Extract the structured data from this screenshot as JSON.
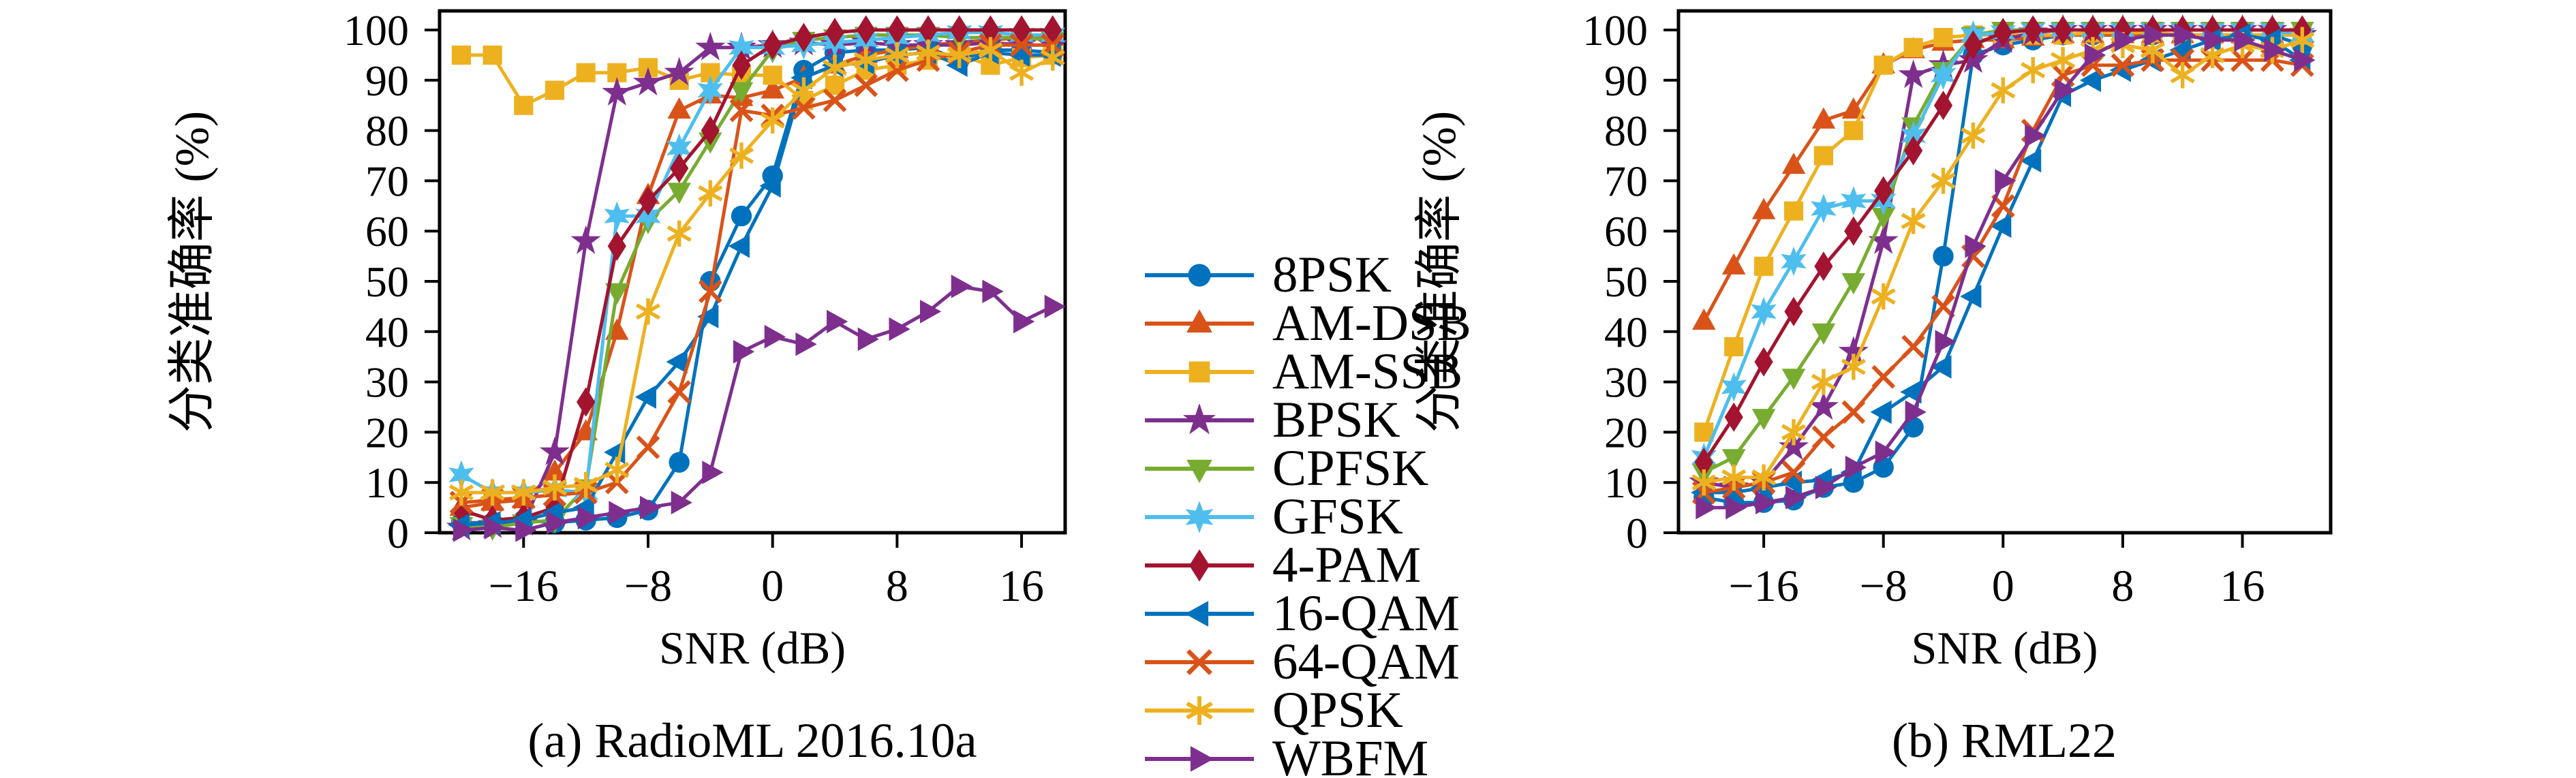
{
  "figure": {
    "background": "#FFFFFF",
    "type": "dual-line-chart-figure"
  },
  "axis": {
    "ylabel": "分类准确率 (%)",
    "xlabel": "SNR (dB)",
    "yticks": [
      "0",
      "10",
      "20",
      "30",
      "40",
      "50",
      "60",
      "70",
      "80",
      "90",
      "100"
    ],
    "xtick_values": [
      -16,
      -8,
      0,
      8,
      16
    ],
    "xtick_labels": [
      "−16",
      "−8",
      "0",
      "8",
      "16"
    ]
  },
  "colors": {
    "blue": "#0072BD",
    "orange": "#D95319",
    "yellow": "#EDB120",
    "purple": "#7E2F8E",
    "green": "#77AC30",
    "cyan": "#4DBEEE",
    "maroon": "#A2142F",
    "axis_black": "#000000"
  },
  "legend": {
    "items": [
      {
        "label": "8PSK",
        "color": "#0072BD",
        "marker": "circle"
      },
      {
        "label": "AM-DSB",
        "color": "#D95319",
        "marker": "triangle-up"
      },
      {
        "label": "AM-SSB",
        "color": "#EDB120",
        "marker": "square"
      },
      {
        "label": "BPSK",
        "color": "#7E2F8E",
        "marker": "star5"
      },
      {
        "label": "CPFSK",
        "color": "#77AC30",
        "marker": "triangle-down"
      },
      {
        "label": "GFSK",
        "color": "#4DBEEE",
        "marker": "hexagram"
      },
      {
        "label": "4-PAM",
        "color": "#A2142F",
        "marker": "diamond"
      },
      {
        "label": "16-QAM",
        "color": "#0072BD",
        "marker": "triangle-left"
      },
      {
        "label": "64-QAM",
        "color": "#D95319",
        "marker": "x"
      },
      {
        "label": "QPSK",
        "color": "#EDB120",
        "marker": "asterisk"
      },
      {
        "label": "WBFM",
        "color": "#7E2F8E",
        "marker": "triangle-right"
      }
    ]
  },
  "chart_data": [
    {
      "type": "line",
      "title": "(a) RadioML 2016.10a",
      "xlabel": "SNR (dB)",
      "ylabel": "分类准确率 (%)",
      "xlim": [
        -21.4,
        18.8
      ],
      "ylim": [
        0,
        104
      ],
      "grid": false,
      "x": [
        -20,
        -18,
        -16,
        -14,
        -12,
        -10,
        -8,
        -6,
        -4,
        -2,
        0,
        2,
        4,
        6,
        8,
        10,
        12,
        14,
        16,
        18
      ],
      "series": [
        {
          "name": "8PSK",
          "color": "#0072BD",
          "marker": "circle",
          "values": [
            2,
            2,
            2.5,
            2,
            2.5,
            3,
            4.5,
            14,
            50,
            63,
            71,
            92,
            95.5,
            96,
            96,
            96.5,
            94,
            96,
            96,
            95.5
          ]
        },
        {
          "name": "AM-DSB",
          "color": "#D95319",
          "marker": "triangle-up",
          "values": [
            5,
            6,
            6.5,
            12,
            20,
            40,
            67,
            84,
            87,
            86.5,
            88,
            90.5,
            93,
            95,
            96,
            97,
            97.5,
            98,
            98.5,
            98.5
          ]
        },
        {
          "name": "AM-SSB",
          "color": "#EDB120",
          "marker": "square",
          "values": [
            95,
            95,
            85,
            88,
            91.5,
            91.5,
            92.5,
            90,
            91.5,
            91,
            91,
            86,
            89,
            92,
            93,
            94,
            95,
            93,
            94.5,
            95
          ]
        },
        {
          "name": "BPSK",
          "color": "#7E2F8E",
          "marker": "star5",
          "values": [
            1,
            1.5,
            2,
            16,
            58,
            87.5,
            89.5,
            91.5,
            96.5,
            96.5,
            97,
            97.5,
            97,
            97.5,
            97,
            97,
            97,
            97.5,
            97,
            97
          ]
        },
        {
          "name": "CPFSK",
          "color": "#77AC30",
          "marker": "triangle-down",
          "values": [
            1.5,
            1,
            2,
            2.5,
            9,
            48,
            62,
            68,
            78,
            88,
            96,
            98,
            98.5,
            99,
            99,
            99,
            98.5,
            98.5,
            98.5,
            98
          ]
        },
        {
          "name": "GFSK",
          "color": "#4DBEEE",
          "marker": "hexagram",
          "values": [
            11.5,
            8,
            8,
            8.5,
            8,
            63,
            63,
            76.5,
            88,
            96.5,
            96.5,
            97,
            97.5,
            98,
            98.5,
            99,
            99.5,
            99.5,
            99,
            99
          ]
        },
        {
          "name": "4-PAM",
          "color": "#A2142F",
          "marker": "diamond",
          "values": [
            4.5,
            2.5,
            3,
            5,
            26,
            57,
            66,
            72.5,
            80,
            93,
            97,
            98.5,
            99.5,
            100,
            100,
            100,
            100,
            100,
            100,
            100
          ]
        },
        {
          "name": "16-QAM",
          "color": "#0072BD",
          "marker": "triangle-left",
          "values": [
            1.5,
            2,
            2.5,
            4,
            5,
            16,
            27,
            34,
            43,
            57,
            69,
            90.5,
            93,
            93.5,
            95,
            95.5,
            93,
            95.5,
            95,
            95
          ]
        },
        {
          "name": "64-QAM",
          "color": "#D95319",
          "marker": "x",
          "values": [
            6,
            6.5,
            7,
            7.5,
            8,
            10,
            17,
            28,
            48,
            84,
            83,
            84.5,
            86,
            89,
            92,
            94,
            95.5,
            97,
            97,
            97
          ]
        },
        {
          "name": "QPSK",
          "color": "#EDB120",
          "marker": "asterisk",
          "values": [
            8,
            8,
            8,
            9,
            9.5,
            12.5,
            44,
            59.5,
            67.5,
            75,
            82,
            88,
            92.5,
            94,
            95,
            95.5,
            95,
            96,
            91.5,
            94.5
          ]
        },
        {
          "name": "WBFM",
          "color": "#7E2F8E",
          "marker": "triangle-right",
          "values": [
            0.5,
            1,
            0.5,
            2,
            3,
            4,
            5,
            6,
            12,
            36,
            39,
            37.5,
            42,
            38.5,
            40.5,
            44,
            49,
            48,
            42,
            45
          ]
        }
      ]
    },
    {
      "type": "line",
      "title": "(b) RML22",
      "xlabel": "SNR (dB)",
      "ylabel": "分类准确率 (%)",
      "xlim": [
        -21.7,
        21.9
      ],
      "ylim": [
        0,
        104
      ],
      "grid": false,
      "x": [
        -20,
        -18,
        -16,
        -14,
        -12,
        -10,
        -8,
        -6,
        -4,
        -2,
        0,
        2,
        4,
        6,
        8,
        10,
        12,
        14,
        16,
        18,
        20
      ],
      "series": [
        {
          "name": "8PSK",
          "color": "#0072BD",
          "marker": "circle",
          "values": [
            7,
            6,
            6,
            6.5,
            9,
            10,
            13,
            21,
            55,
            95,
            97,
            98,
            99,
            99,
            99,
            99,
            99,
            99,
            99,
            99,
            97
          ]
        },
        {
          "name": "AM-DSB",
          "color": "#D95319",
          "marker": "triangle-up",
          "values": [
            42,
            53,
            64,
            73,
            82,
            84,
            93,
            96,
            97.5,
            98,
            98,
            98.5,
            99,
            99,
            99,
            99,
            99,
            99,
            99,
            99,
            99
          ]
        },
        {
          "name": "AM-SSB",
          "color": "#EDB120",
          "marker": "square",
          "values": [
            20,
            37,
            53,
            64,
            75,
            80,
            93,
            96.5,
            98.5,
            99,
            99,
            99,
            99,
            99.5,
            99.5,
            99.5,
            99,
            99,
            99,
            99,
            99
          ]
        },
        {
          "name": "BPSK",
          "color": "#7E2F8E",
          "marker": "star5",
          "values": [
            10,
            9,
            10,
            17,
            25,
            36,
            58,
            91,
            93,
            94,
            98,
            99.5,
            100,
            100,
            100,
            100,
            100,
            100,
            100,
            100,
            99
          ]
        },
        {
          "name": "CPFSK",
          "color": "#77AC30",
          "marker": "triangle-down",
          "values": [
            12,
            15,
            23,
            31,
            40,
            50,
            63,
            81,
            92,
            99,
            100,
            100,
            100,
            100,
            100,
            100,
            100,
            100,
            100,
            100,
            100
          ]
        },
        {
          "name": "GFSK",
          "color": "#4DBEEE",
          "marker": "hexagram",
          "values": [
            15,
            29,
            44,
            54,
            64.5,
            66,
            66,
            79,
            91,
            99,
            99.5,
            100,
            100,
            100,
            100,
            100,
            100,
            100,
            100,
            100,
            99
          ]
        },
        {
          "name": "4-PAM",
          "color": "#A2142F",
          "marker": "diamond",
          "values": [
            14,
            23,
            34,
            44,
            53,
            60,
            68,
            76,
            85,
            97,
            99.5,
            100,
            100,
            100,
            100,
            100,
            100,
            100,
            100,
            100,
            100
          ]
        },
        {
          "name": "16-QAM",
          "color": "#0072BD",
          "marker": "triangle-left",
          "values": [
            8,
            8,
            9,
            10,
            10.5,
            12,
            24,
            28,
            33,
            47,
            61,
            74,
            87,
            90,
            92,
            94,
            96,
            98,
            99,
            98,
            94
          ]
        },
        {
          "name": "64-QAM",
          "color": "#D95319",
          "marker": "x",
          "values": [
            8,
            9,
            10,
            12,
            19,
            24,
            31,
            37,
            45,
            55,
            65,
            80,
            91,
            93,
            93,
            94,
            94,
            94,
            94,
            94,
            93
          ]
        },
        {
          "name": "QPSK",
          "color": "#EDB120",
          "marker": "asterisk",
          "values": [
            10,
            11,
            11,
            20,
            30,
            33,
            47,
            62,
            70,
            79,
            88,
            92,
            94,
            96,
            97,
            96,
            91,
            95,
            97,
            96,
            98
          ]
        },
        {
          "name": "WBFM",
          "color": "#7E2F8E",
          "marker": "triangle-right",
          "values": [
            5,
            5,
            6,
            7,
            9,
            13,
            16,
            24,
            38,
            57,
            70,
            79,
            88,
            95,
            98,
            99,
            99,
            98,
            98,
            96,
            94
          ]
        }
      ]
    }
  ]
}
